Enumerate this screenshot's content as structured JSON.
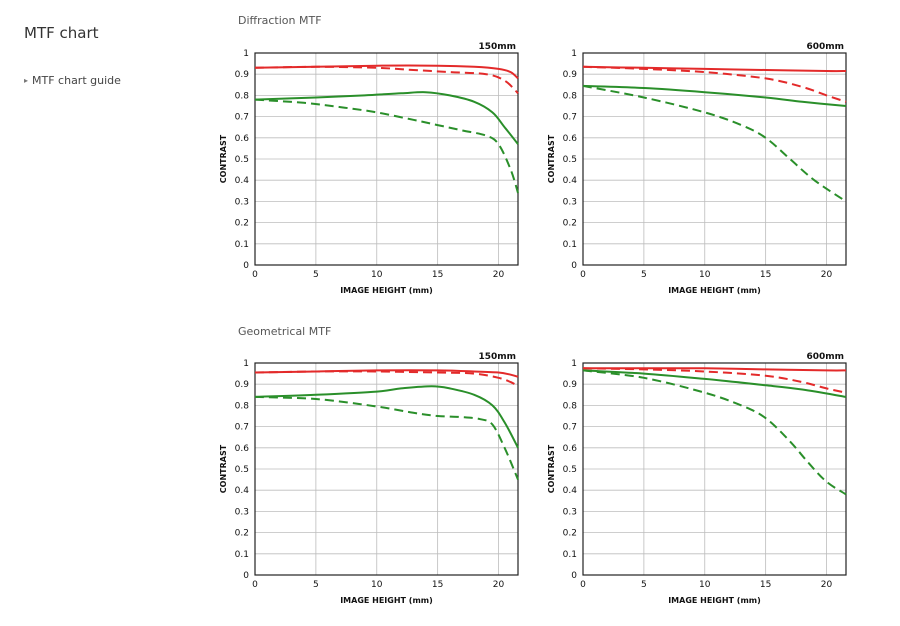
{
  "page": {
    "title": "MTF chart",
    "nav_link": "MTF chart guide"
  },
  "sections": [
    {
      "id": "diffraction",
      "title": "Diffraction MTF"
    },
    {
      "id": "geometrical",
      "title": "Geometrical MTF"
    }
  ],
  "colors": {
    "red": "#e32a2a",
    "green": "#2a8f2a",
    "grid": "#bdbdbd",
    "frame": "#222222"
  },
  "chart_data": [
    {
      "type": "line",
      "section": "Diffraction MTF",
      "focal_label": "150mm",
      "xlabel": "IMAGE HEIGHT (mm)",
      "ylabel": "CONTRAST",
      "xlim": [
        0,
        21.6
      ],
      "ylim": [
        0,
        1
      ],
      "xticks": [
        "0",
        "5",
        "10",
        "15",
        "20"
      ],
      "yticks": [
        "0",
        "0.1",
        "0.2",
        "0.3",
        "0.4",
        "0.5",
        "0.6",
        "0.7",
        "0.8",
        "0.9",
        "1"
      ],
      "grid": true,
      "series": [
        {
          "color": "red",
          "dashed": false,
          "points": [
            [
              0,
              0.93
            ],
            [
              5,
              0.935
            ],
            [
              10,
              0.94
            ],
            [
              15,
              0.94
            ],
            [
              18,
              0.935
            ],
            [
              20,
              0.925
            ],
            [
              21,
              0.91
            ],
            [
              21.6,
              0.88
            ]
          ]
        },
        {
          "color": "red",
          "dashed": true,
          "points": [
            [
              0,
              0.93
            ],
            [
              5,
              0.935
            ],
            [
              10,
              0.93
            ],
            [
              13,
              0.92
            ],
            [
              16,
              0.91
            ],
            [
              19,
              0.9
            ],
            [
              20.5,
              0.87
            ],
            [
              21.6,
              0.81
            ]
          ]
        },
        {
          "color": "green",
          "dashed": false,
          "points": [
            [
              0,
              0.78
            ],
            [
              5,
              0.79
            ],
            [
              9,
              0.8
            ],
            [
              12,
              0.81
            ],
            [
              14,
              0.815
            ],
            [
              16,
              0.8
            ],
            [
              18,
              0.77
            ],
            [
              19.5,
              0.72
            ],
            [
              20.5,
              0.65
            ],
            [
              21.6,
              0.57
            ]
          ]
        },
        {
          "color": "green",
          "dashed": true,
          "points": [
            [
              0,
              0.78
            ],
            [
              4,
              0.765
            ],
            [
              7,
              0.745
            ],
            [
              10,
              0.72
            ],
            [
              13,
              0.685
            ],
            [
              15,
              0.66
            ],
            [
              17,
              0.635
            ],
            [
              19,
              0.61
            ],
            [
              20,
              0.57
            ],
            [
              21,
              0.45
            ],
            [
              21.6,
              0.34
            ]
          ]
        }
      ]
    },
    {
      "type": "line",
      "section": "Diffraction MTF",
      "focal_label": "600mm",
      "xlabel": "IMAGE HEIGHT (mm)",
      "ylabel": "CONTRAST",
      "xlim": [
        0,
        21.6
      ],
      "ylim": [
        0,
        1
      ],
      "xticks": [
        "0",
        "5",
        "10",
        "15",
        "20"
      ],
      "yticks": [
        "0",
        "0.1",
        "0.2",
        "0.3",
        "0.4",
        "0.5",
        "0.6",
        "0.7",
        "0.8",
        "0.9",
        "1"
      ],
      "grid": true,
      "series": [
        {
          "color": "red",
          "dashed": false,
          "points": [
            [
              0,
              0.935
            ],
            [
              5,
              0.93
            ],
            [
              10,
              0.925
            ],
            [
              15,
              0.92
            ],
            [
              20,
              0.915
            ],
            [
              21.6,
              0.915
            ]
          ]
        },
        {
          "color": "red",
          "dashed": true,
          "points": [
            [
              0,
              0.935
            ],
            [
              5,
              0.925
            ],
            [
              10,
              0.91
            ],
            [
              15,
              0.88
            ],
            [
              18,
              0.84
            ],
            [
              20,
              0.8
            ],
            [
              21.6,
              0.77
            ]
          ]
        },
        {
          "color": "green",
          "dashed": false,
          "points": [
            [
              0,
              0.845
            ],
            [
              5,
              0.835
            ],
            [
              10,
              0.815
            ],
            [
              15,
              0.79
            ],
            [
              18,
              0.77
            ],
            [
              21.6,
              0.75
            ]
          ]
        },
        {
          "color": "green",
          "dashed": true,
          "points": [
            [
              0,
              0.845
            ],
            [
              5,
              0.79
            ],
            [
              10,
              0.72
            ],
            [
              13,
              0.66
            ],
            [
              15,
              0.6
            ],
            [
              17,
              0.5
            ],
            [
              19,
              0.4
            ],
            [
              21.6,
              0.3
            ]
          ]
        }
      ]
    },
    {
      "type": "line",
      "section": "Geometrical MTF",
      "focal_label": "150mm",
      "xlabel": "IMAGE HEIGHT (mm)",
      "ylabel": "CONTRAST",
      "xlim": [
        0,
        21.6
      ],
      "ylim": [
        0,
        1
      ],
      "xticks": [
        "0",
        "5",
        "10",
        "15",
        "20"
      ],
      "yticks": [
        "0",
        "0.1",
        "0.2",
        "0.3",
        "0.4",
        "0.5",
        "0.6",
        "0.7",
        "0.8",
        "0.9",
        "1"
      ],
      "grid": true,
      "series": [
        {
          "color": "red",
          "dashed": false,
          "points": [
            [
              0,
              0.955
            ],
            [
              5,
              0.96
            ],
            [
              10,
              0.965
            ],
            [
              15,
              0.965
            ],
            [
              18,
              0.96
            ],
            [
              20,
              0.955
            ],
            [
              21,
              0.945
            ],
            [
              21.6,
              0.935
            ]
          ]
        },
        {
          "color": "red",
          "dashed": true,
          "points": [
            [
              0,
              0.955
            ],
            [
              5,
              0.96
            ],
            [
              10,
              0.96
            ],
            [
              15,
              0.955
            ],
            [
              18,
              0.95
            ],
            [
              20,
              0.93
            ],
            [
              21,
              0.91
            ],
            [
              21.6,
              0.89
            ]
          ]
        },
        {
          "color": "green",
          "dashed": false,
          "points": [
            [
              0,
              0.84
            ],
            [
              5,
              0.85
            ],
            [
              10,
              0.865
            ],
            [
              12,
              0.88
            ],
            [
              14.5,
              0.89
            ],
            [
              16,
              0.88
            ],
            [
              18,
              0.85
            ],
            [
              19.5,
              0.8
            ],
            [
              20.5,
              0.72
            ],
            [
              21.6,
              0.6
            ]
          ]
        },
        {
          "color": "green",
          "dashed": true,
          "points": [
            [
              0,
              0.84
            ],
            [
              5,
              0.83
            ],
            [
              10,
              0.795
            ],
            [
              13,
              0.765
            ],
            [
              15,
              0.75
            ],
            [
              17,
              0.745
            ],
            [
              18.5,
              0.735
            ],
            [
              19.5,
              0.71
            ],
            [
              20.5,
              0.6
            ],
            [
              21.6,
              0.45
            ]
          ]
        }
      ]
    },
    {
      "type": "line",
      "section": "Geometrical MTF",
      "focal_label": "600mm",
      "xlabel": "IMAGE HEIGHT (mm)",
      "ylabel": "CONTRAST",
      "xlim": [
        0,
        21.6
      ],
      "ylim": [
        0,
        1
      ],
      "xticks": [
        "0",
        "5",
        "10",
        "15",
        "20"
      ],
      "yticks": [
        "0",
        "0.1",
        "0.2",
        "0.3",
        "0.4",
        "0.5",
        "0.6",
        "0.7",
        "0.8",
        "0.9",
        "1"
      ],
      "grid": true,
      "series": [
        {
          "color": "red",
          "dashed": false,
          "points": [
            [
              0,
              0.975
            ],
            [
              5,
              0.975
            ],
            [
              10,
              0.975
            ],
            [
              15,
              0.97
            ],
            [
              20,
              0.965
            ],
            [
              21.6,
              0.965
            ]
          ]
        },
        {
          "color": "red",
          "dashed": true,
          "points": [
            [
              0,
              0.975
            ],
            [
              5,
              0.97
            ],
            [
              10,
              0.96
            ],
            [
              15,
              0.94
            ],
            [
              18,
              0.91
            ],
            [
              20,
              0.88
            ],
            [
              21.6,
              0.86
            ]
          ]
        },
        {
          "color": "green",
          "dashed": false,
          "points": [
            [
              0,
              0.965
            ],
            [
              5,
              0.95
            ],
            [
              10,
              0.925
            ],
            [
              15,
              0.895
            ],
            [
              18,
              0.875
            ],
            [
              21.6,
              0.84
            ]
          ]
        },
        {
          "color": "green",
          "dashed": true,
          "points": [
            [
              0,
              0.965
            ],
            [
              5,
              0.93
            ],
            [
              10,
              0.86
            ],
            [
              13,
              0.8
            ],
            [
              15,
              0.74
            ],
            [
              17,
              0.63
            ],
            [
              18.5,
              0.53
            ],
            [
              20,
              0.44
            ],
            [
              21.6,
              0.38
            ]
          ]
        }
      ]
    }
  ]
}
